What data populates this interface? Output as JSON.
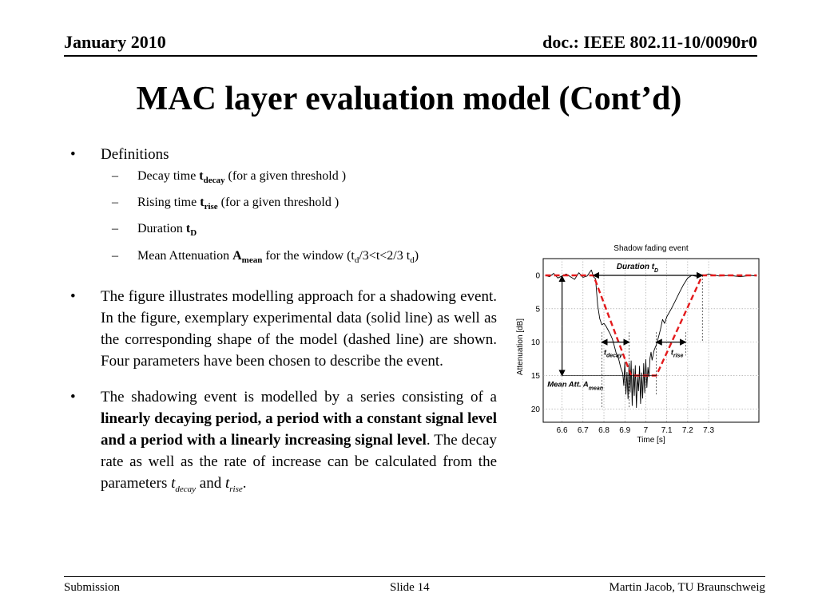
{
  "header": {
    "date": "January 2010",
    "doc": "doc.: IEEE 802.11-10/0090r0"
  },
  "title": "MAC layer evaluation model (Cont’d)",
  "bullets": {
    "definitions": "Definitions",
    "decay": {
      "pre": "Decay time ",
      "sym": "t",
      "sub": "decay",
      "post": " (for a given threshold )"
    },
    "rise": {
      "pre": "Rising time ",
      "sym": "t",
      "sub": "rise",
      "post": " (for a given threshold )"
    },
    "duration": {
      "pre": "Duration ",
      "sym": "t",
      "sub": "D"
    },
    "mean": {
      "pre": "Mean Attenuation  ",
      "sym": "A",
      "sub": "mean",
      "post1": " for the window (t",
      "sub1": "d",
      "mid": "/3<t<2/3 t",
      "sub2": "d",
      "post2": ")"
    },
    "figure_text": "The figure illustrates modelling approach for a shadowing event. In the figure, exemplary experimental data (solid line) as well as the corresponding shape of the model (dashed line) are shown. Four parameters have been chosen to describe the event.",
    "model": {
      "p1": "The shadowing event is modelled by a series consisting of a ",
      "bold": "linearly decaying period, a period with a constant signal level and a period with a linearly increasing signal level",
      "p2": ". The decay rate as well as the rate of increase can be calculated from the parameters ",
      "t1": "t",
      "s1": "decay",
      "and": " and ",
      "t2": "t",
      "s2": "rise",
      "end": "."
    }
  },
  "footer": {
    "left": "Submission",
    "mid": "Slide 14",
    "right": "Martin Jacob, TU Braunschweig"
  },
  "chart_data": {
    "type": "line",
    "title": "Shadow fading event",
    "xlabel": "Time [s]",
    "ylabel": "Attenuation [dB]",
    "xlim": [
      6.51,
      7.54
    ],
    "ylim": [
      0,
      22
    ],
    "y_inverted": true,
    "xticks": [
      "6.6",
      "6.7",
      "6.8",
      "6.9",
      "7",
      "7.1",
      "7.2",
      "7.3"
    ],
    "yticks": [
      "0",
      "5",
      "10",
      "15",
      "20"
    ],
    "grid": true,
    "series": [
      {
        "style": "solid",
        "color": "#000000",
        "x": [
          6.52,
          6.54,
          6.56,
          6.58,
          6.6,
          6.62,
          6.64,
          6.66,
          6.68,
          6.7,
          6.72,
          6.74,
          6.75,
          6.76,
          6.77,
          6.78,
          6.79,
          6.8,
          6.81,
          6.82,
          6.83,
          6.84,
          6.85,
          6.86,
          6.87,
          6.88,
          6.89,
          6.895,
          6.9,
          6.905,
          6.91,
          6.915,
          6.92,
          6.925,
          6.93,
          6.935,
          6.94,
          6.945,
          6.95,
          6.955,
          6.96,
          6.965,
          6.97,
          6.975,
          6.98,
          6.985,
          6.99,
          6.995,
          7.0,
          7.005,
          7.01,
          7.015,
          7.02,
          7.025,
          7.03,
          7.04,
          7.05,
          7.06,
          7.07,
          7.08,
          7.09,
          7.1,
          7.12,
          7.14,
          7.16,
          7.18,
          7.2,
          7.22,
          7.25,
          7.3,
          7.35,
          7.4,
          7.45,
          7.5,
          7.53
        ],
        "y": [
          0,
          0.2,
          -0.3,
          0.4,
          0.1,
          -0.2,
          0.2,
          0.6,
          -0.4,
          0.3,
          0.1,
          -0.8,
          0.2,
          0.5,
          4.5,
          6.5,
          7.4,
          7.2,
          7.6,
          8.2,
          8.8,
          9.5,
          10.6,
          11.8,
          12.5,
          13.8,
          14.7,
          16.5,
          13,
          17.8,
          14.5,
          18.5,
          13.2,
          17.5,
          12.8,
          19.5,
          14,
          18,
          13.5,
          19.8,
          15.2,
          17.3,
          13.6,
          19.2,
          14.6,
          18.4,
          13.2,
          17.6,
          12.6,
          16.8,
          13.8,
          15.2,
          12.4,
          11.5,
          12.7,
          11.2,
          10.4,
          9.3,
          8.1,
          6.6,
          7.2,
          6.2,
          5.1,
          3.9,
          2.6,
          1.4,
          0.4,
          0,
          0.2,
          -0.2,
          0.1,
          0,
          0.2,
          0,
          0.1
        ]
      },
      {
        "style": "dashed",
        "color": "#e31a1c",
        "x": [
          6.52,
          6.75,
          6.93,
          7.05,
          7.27,
          7.53
        ],
        "y": [
          0,
          0,
          15,
          15,
          0,
          0
        ]
      }
    ],
    "annotations": [
      {
        "type": "label",
        "text": "Duration ",
        "sym": "t",
        "sub": "D"
      },
      {
        "type": "label",
        "text": "t",
        "sub": "decay"
      },
      {
        "type": "label",
        "text": "t",
        "sub": "rise"
      },
      {
        "type": "label",
        "text": "Mean Att. ",
        "sym": "A",
        "sub": "mean"
      }
    ]
  }
}
